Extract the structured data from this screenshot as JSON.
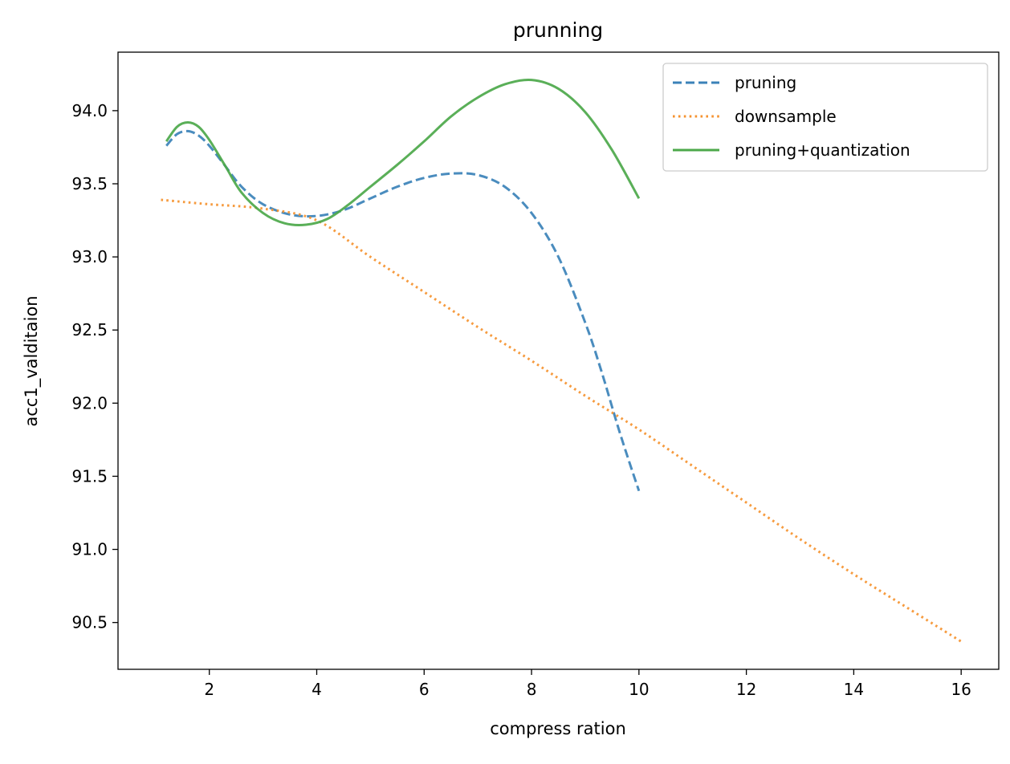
{
  "chart_data": {
    "type": "line",
    "title": "prunning",
    "xlabel": "compress ration",
    "ylabel": "acc1_valditaion",
    "xlim": [
      0.3,
      16.7
    ],
    "ylim": [
      90.18,
      94.4
    ],
    "xticks": [
      2,
      4,
      6,
      8,
      10,
      12,
      14,
      16
    ],
    "yticks": [
      90.5,
      91.0,
      91.5,
      92.0,
      92.5,
      93.0,
      93.5,
      94.0
    ],
    "grid": false,
    "legend_position": "top-right",
    "series": [
      {
        "name": "pruning",
        "style": "dashed",
        "color": "#3b82b8",
        "x": [
          1.2,
          1.4,
          1.6,
          1.8,
          2.0,
          2.3,
          2.6,
          3.0,
          3.5,
          4.0,
          4.5,
          5.0,
          5.5,
          6.0,
          6.5,
          7.0,
          7.5,
          8.0,
          8.5,
          9.0,
          9.3,
          9.6,
          9.8,
          10.0
        ],
        "y": [
          93.76,
          93.84,
          93.86,
          93.83,
          93.76,
          93.62,
          93.48,
          93.36,
          93.29,
          93.28,
          93.32,
          93.4,
          93.48,
          93.54,
          93.57,
          93.56,
          93.48,
          93.3,
          93.0,
          92.55,
          92.22,
          91.85,
          91.62,
          91.4
        ]
      },
      {
        "name": "downsample",
        "style": "dotted",
        "color": "#f5922f",
        "x": [
          1.1,
          2,
          3,
          4,
          5,
          6,
          7,
          8,
          9,
          10,
          11,
          12,
          13,
          14,
          15,
          16
        ],
        "y": [
          93.39,
          93.36,
          93.33,
          93.25,
          93.0,
          92.76,
          92.52,
          92.29,
          92.05,
          91.82,
          91.57,
          91.32,
          91.07,
          90.83,
          90.6,
          90.37
        ]
      },
      {
        "name": "pruning+quantization",
        "style": "solid",
        "color": "#4ca84a",
        "x": [
          1.2,
          1.4,
          1.6,
          1.8,
          2.0,
          2.3,
          2.6,
          3.0,
          3.4,
          3.8,
          4.2,
          4.6,
          5.0,
          5.5,
          6.0,
          6.5,
          7.0,
          7.5,
          8.0,
          8.5,
          9.0,
          9.5,
          10.0
        ],
        "y": [
          93.79,
          93.89,
          93.92,
          93.89,
          93.8,
          93.62,
          93.44,
          93.3,
          93.23,
          93.22,
          93.26,
          93.36,
          93.48,
          93.63,
          93.79,
          93.96,
          94.09,
          94.18,
          94.21,
          94.15,
          93.99,
          93.73,
          93.4
        ]
      }
    ]
  }
}
